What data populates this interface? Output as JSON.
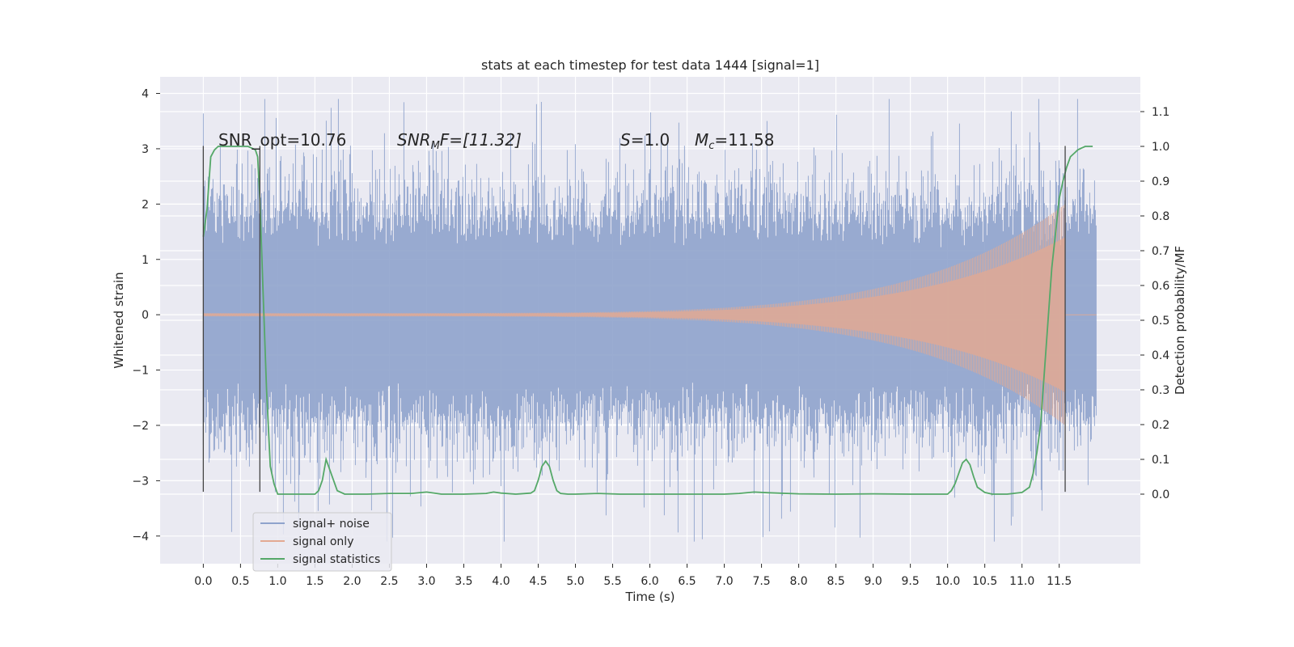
{
  "chart_data": {
    "type": "line",
    "title": "stats at each timestep for test data 1444 [signal=1]",
    "xlabel": "Time (s)",
    "ylabel": "Whitened strain",
    "ylabel_right": "Detection probability/MF",
    "xlim": [
      -0.58,
      12.59
    ],
    "ylim": [
      -4.5,
      4.3
    ],
    "ylim_right": [
      -0.2,
      1.2
    ],
    "x_ticks": [
      "0.0",
      "0.5",
      "1.0",
      "1.5",
      "2.0",
      "2.5",
      "3.0",
      "3.5",
      "4.0",
      "4.5",
      "5.0",
      "5.5",
      "6.0",
      "6.5",
      "7.0",
      "7.5",
      "8.0",
      "8.5",
      "9.0",
      "9.5",
      "10.0",
      "10.5",
      "11.0",
      "11.5"
    ],
    "y_ticks": [
      "4",
      "3",
      "2",
      "1",
      "0",
      "−1",
      "−2",
      "−3",
      "−4"
    ],
    "y_ticks_right": [
      "1.1",
      "1.0",
      "0.9",
      "0.8",
      "0.7",
      "0.6",
      "0.5",
      "0.4",
      "0.3",
      "0.2",
      "0.1",
      "0.0"
    ],
    "grid": true,
    "legend_position": "lower-left",
    "annotations": {
      "snr_opt": "SNR_opt=10.76",
      "snr_mf_symbol": "SNR",
      "snr_mf_subscript": "M",
      "snr_mf_rest": "F=[11.32]",
      "s_symbol": "S",
      "s_rest": "=1.0",
      "mc_symbol": "M",
      "mc_subscript": "c",
      "mc_rest": "=11.58"
    },
    "vertical_lines_x": [
      0.0,
      0.76,
      11.58
    ],
    "noise": {
      "duration": 12.0,
      "envelope": 1.2,
      "peak": 3.9,
      "trough": -4.1
    },
    "series": [
      {
        "name": "signal+ noise",
        "color": "#8fa3cc",
        "kind": "noise"
      },
      {
        "name": "signal only",
        "color": "#e3a992",
        "kind": "chirp",
        "chirp": {
          "start": 0.0,
          "end": 11.58,
          "amp_start": 0.03,
          "amp_end": 2.0
        }
      },
      {
        "name": "signal statistics",
        "color": "#55a868",
        "kind": "line",
        "axis": "right",
        "x": [
          0.0,
          0.05,
          0.1,
          0.15,
          0.2,
          0.3,
          0.4,
          0.5,
          0.6,
          0.65,
          0.7,
          0.73,
          0.76,
          0.8,
          0.85,
          0.9,
          0.95,
          1.0,
          1.1,
          1.2,
          1.3,
          1.4,
          1.5,
          1.55,
          1.6,
          1.65,
          1.7,
          1.8,
          1.9,
          2.0,
          2.2,
          2.5,
          2.8,
          3.0,
          3.2,
          3.5,
          3.8,
          3.9,
          4.0,
          4.2,
          4.4,
          4.45,
          4.5,
          4.55,
          4.6,
          4.65,
          4.7,
          4.75,
          4.8,
          4.9,
          5.0,
          5.3,
          5.6,
          6.0,
          6.5,
          7.0,
          7.2,
          7.4,
          7.6,
          8.0,
          8.5,
          9.0,
          9.5,
          10.0,
          10.05,
          10.1,
          10.15,
          10.2,
          10.25,
          10.3,
          10.35,
          10.4,
          10.5,
          10.6,
          10.8,
          11.0,
          11.1,
          11.15,
          11.2,
          11.25,
          11.3,
          11.35,
          11.4,
          11.45,
          11.5,
          11.55,
          11.6,
          11.65,
          11.7,
          11.75,
          11.8,
          11.85,
          11.9,
          11.95
        ],
        "y": [
          0.74,
          0.82,
          0.97,
          0.99,
          1.0,
          1.0,
          1.0,
          1.0,
          1.0,
          0.995,
          0.99,
          0.97,
          0.85,
          0.6,
          0.3,
          0.08,
          0.03,
          0.0,
          0.0,
          0.0,
          0.0,
          0.0,
          0.0,
          0.01,
          0.04,
          0.1,
          0.07,
          0.01,
          0.0,
          0.0,
          0.0,
          0.002,
          0.002,
          0.006,
          0.0,
          0.0,
          0.002,
          0.006,
          0.003,
          0.0,
          0.003,
          0.01,
          0.04,
          0.08,
          0.095,
          0.08,
          0.04,
          0.01,
          0.002,
          0.0,
          0.0,
          0.002,
          0.0,
          0.0,
          0.0,
          0.0,
          0.002,
          0.006,
          0.004,
          0.001,
          0.0,
          0.001,
          0.0,
          0.0,
          0.01,
          0.03,
          0.06,
          0.09,
          0.1,
          0.085,
          0.05,
          0.02,
          0.005,
          0.0,
          0.0,
          0.005,
          0.02,
          0.06,
          0.12,
          0.2,
          0.35,
          0.5,
          0.65,
          0.75,
          0.85,
          0.9,
          0.94,
          0.97,
          0.98,
          0.99,
          0.995,
          1.0,
          1.0,
          1.0
        ]
      }
    ]
  }
}
